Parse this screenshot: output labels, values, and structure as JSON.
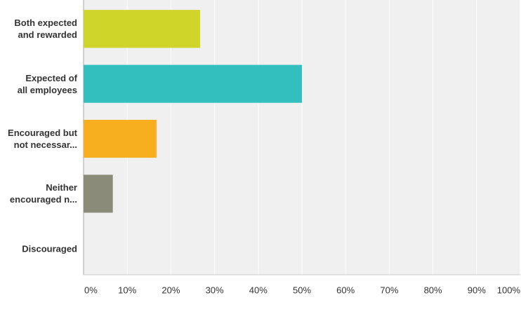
{
  "chart_data": {
    "type": "hbar",
    "categories": [
      "Both expected\nand rewarded",
      "Expected of\nall employees",
      "Encouraged but\nnot necessar...",
      "Neither\nencouraged n...",
      "Discouraged"
    ],
    "values": [
      26.7,
      50.0,
      16.7,
      6.7,
      0
    ],
    "colors": [
      "#d0d52a",
      "#32bfbd",
      "#f7ae1f",
      "#8b8b7a"
    ],
    "xlim": [
      0,
      100
    ],
    "xticks": [
      {
        "value": 0,
        "label": "0%"
      },
      {
        "value": 10,
        "label": "10%"
      },
      {
        "value": 20,
        "label": "20%"
      },
      {
        "value": 30,
        "label": "30%"
      },
      {
        "value": 40,
        "label": "40%"
      },
      {
        "value": 50,
        "label": "50%"
      },
      {
        "value": 60,
        "label": "60%"
      },
      {
        "value": 70,
        "label": "70%"
      },
      {
        "value": 80,
        "label": "80%"
      },
      {
        "value": 90,
        "label": "90%"
      },
      {
        "value": 100,
        "label": "100%"
      }
    ],
    "grid": true
  }
}
